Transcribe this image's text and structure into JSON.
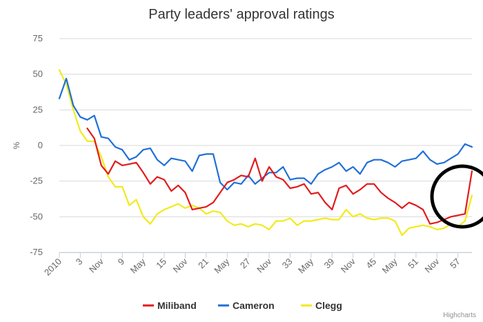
{
  "chart_data": {
    "type": "line",
    "title": "Party leaders' approval ratings",
    "ylabel": "%",
    "xlabel": "",
    "ylim": [
      -75,
      75
    ],
    "yticks": [
      -75,
      -50,
      -25,
      0,
      25,
      50,
      75
    ],
    "grid": true,
    "legend_position": "bottom-center",
    "credits": "Highcharts",
    "x_tick_labels": [
      "2010",
      "3",
      "Nov",
      "9",
      "May",
      "15",
      "Nov",
      "21",
      "May",
      "27",
      "Nov",
      "33",
      "May",
      "39",
      "Nov",
      "45",
      "May",
      "51",
      "Nov",
      "57"
    ],
    "x_tick_positions": [
      0,
      3,
      6,
      9,
      12,
      15,
      18,
      21,
      24,
      27,
      30,
      33,
      36,
      39,
      42,
      45,
      48,
      51,
      54,
      57
    ],
    "x_range": [
      0,
      59
    ],
    "series": [
      {
        "name": "Miliband",
        "color": "#e31a1c",
        "x": [
          4,
          5,
          6,
          7,
          8,
          9,
          10,
          11,
          12,
          13,
          14,
          15,
          16,
          17,
          18,
          19,
          20,
          21,
          22,
          23,
          24,
          25,
          26,
          27,
          28,
          29,
          30,
          31,
          32,
          33,
          34,
          35,
          36,
          37,
          38,
          39,
          40,
          41,
          42,
          43,
          44,
          45,
          46,
          47,
          48,
          49,
          50,
          51,
          52,
          53,
          54,
          55,
          56,
          57,
          58,
          59
        ],
        "values": [
          12,
          5,
          -14,
          -20,
          -11,
          -14,
          -13,
          -12,
          -19,
          -27,
          -22,
          -24,
          -32,
          -28,
          -33,
          -45,
          -44,
          -43,
          -40,
          -33,
          -26,
          -24,
          -21,
          -22,
          -9,
          -25,
          -15,
          -22,
          -24,
          -30,
          -29,
          -27,
          -34,
          -33,
          -40,
          -45,
          -30,
          -28,
          -34,
          -31,
          -27,
          -27,
          -33,
          -37,
          -40,
          -44,
          -40,
          -42,
          -45,
          -55,
          -54,
          -52,
          -50,
          -49,
          -48,
          -18
        ]
      },
      {
        "name": "Cameron",
        "color": "#1f6fd6",
        "x": [
          0,
          1,
          2,
          3,
          4,
          5,
          6,
          7,
          8,
          9,
          10,
          11,
          12,
          13,
          14,
          15,
          16,
          17,
          18,
          19,
          20,
          21,
          22,
          23,
          24,
          25,
          26,
          27,
          28,
          29,
          30,
          31,
          32,
          33,
          34,
          35,
          36,
          37,
          38,
          39,
          40,
          41,
          42,
          43,
          44,
          45,
          46,
          47,
          48,
          49,
          50,
          51,
          52,
          53,
          54,
          55,
          56,
          57,
          58,
          59
        ],
        "values": [
          33,
          47,
          28,
          20,
          18,
          21,
          6,
          5,
          -1,
          -3,
          -10,
          -8,
          -3,
          -2,
          -10,
          -14,
          -9,
          -10,
          -11,
          -18,
          -7,
          -6,
          -6,
          -26,
          -31,
          -26,
          -27,
          -21,
          -27,
          -23,
          -19,
          -19,
          -15,
          -24,
          -23,
          -23,
          -27,
          -20,
          -17,
          -15,
          -12,
          -18,
          -15,
          -20,
          -12,
          -10,
          -10,
          -12,
          -15,
          -11,
          -10,
          -9,
          -4,
          -10,
          -13,
          -12,
          -9,
          -6,
          1,
          -1
        ]
      },
      {
        "name": "Clegg",
        "color": "#f2ea1a",
        "x": [
          0,
          1,
          2,
          3,
          4,
          5,
          6,
          7,
          8,
          9,
          10,
          11,
          12,
          13,
          14,
          15,
          16,
          17,
          18,
          19,
          20,
          21,
          22,
          23,
          24,
          25,
          26,
          27,
          28,
          29,
          30,
          31,
          32,
          33,
          34,
          35,
          36,
          37,
          38,
          39,
          40,
          41,
          42,
          43,
          44,
          45,
          46,
          47,
          48,
          49,
          50,
          51,
          52,
          53,
          54,
          55,
          56,
          57,
          58,
          59
        ],
        "values": [
          53,
          43,
          25,
          10,
          3,
          3,
          -8,
          -22,
          -29,
          -29,
          -42,
          -38,
          -50,
          -55,
          -48,
          -45,
          -43,
          -41,
          -44,
          -42,
          -44,
          -48,
          -46,
          -47,
          -53,
          -56,
          -55,
          -57,
          -55,
          -56,
          -59,
          -53,
          -53,
          -51,
          -56,
          -53,
          -53,
          -52,
          -51,
          -52,
          -52,
          -45,
          -50,
          -48,
          -51,
          -52,
          -51,
          -51,
          -53,
          -63,
          -58,
          -57,
          -56,
          -57,
          -59,
          -58,
          -55,
          -57,
          -53,
          -35
        ]
      }
    ]
  }
}
